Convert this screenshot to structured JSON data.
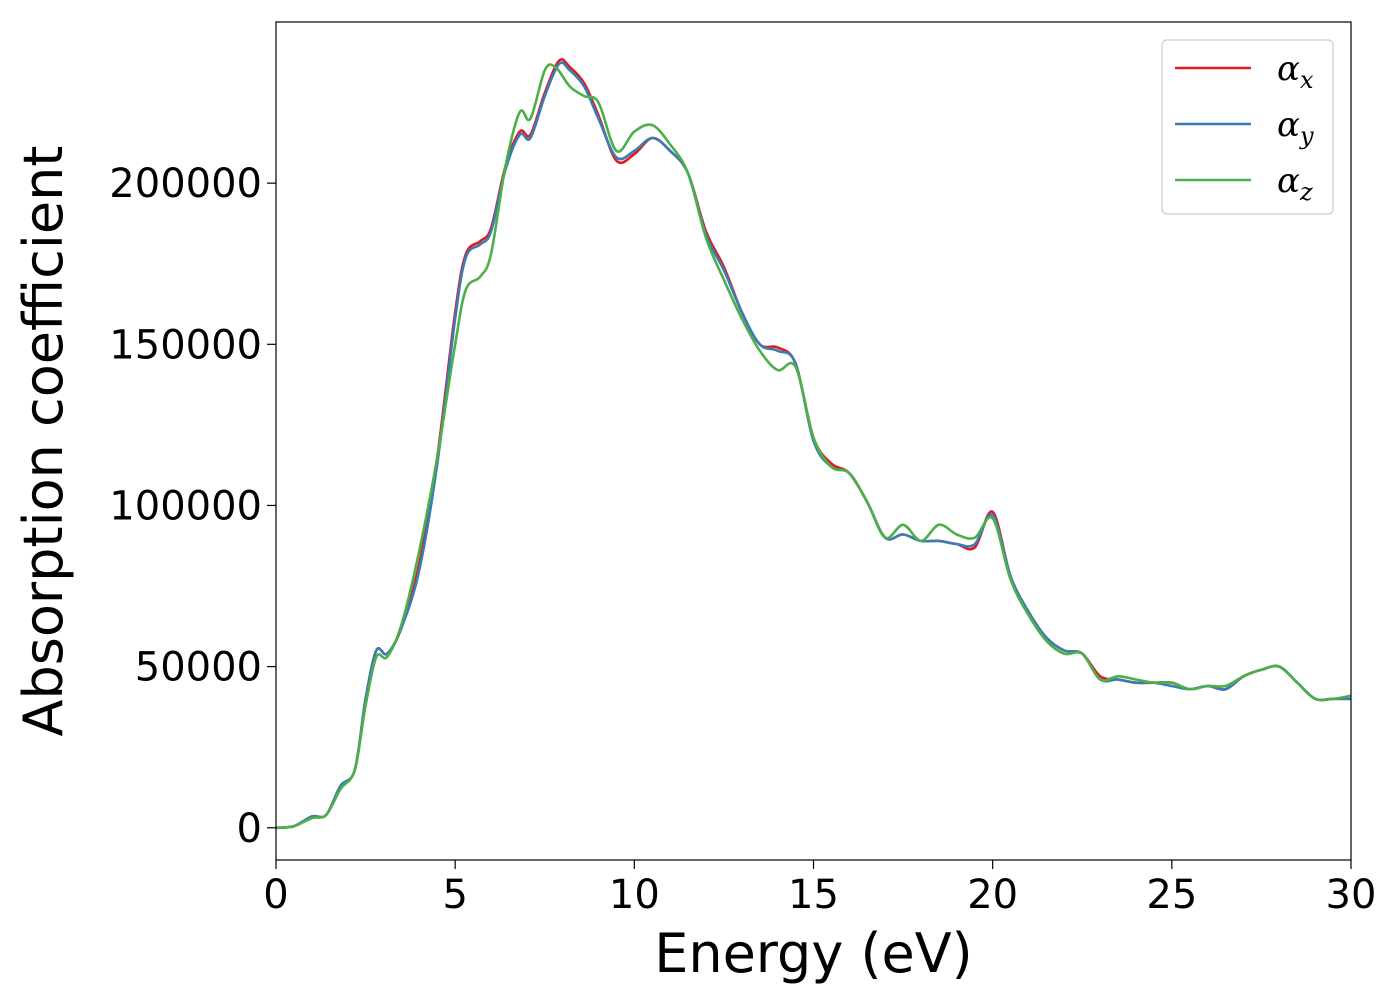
{
  "chart_data": {
    "type": "line",
    "title": "",
    "xlabel": "Energy (eV)",
    "ylabel": "Absorption coefficient",
    "xlim": [
      0,
      30
    ],
    "ylim": [
      -10000,
      250000
    ],
    "x_ticks": [
      0,
      5,
      10,
      15,
      20,
      25,
      30
    ],
    "x_tick_labels": [
      "0",
      "5",
      "10",
      "15",
      "20",
      "25",
      "30"
    ],
    "y_ticks": [
      0,
      50000,
      100000,
      150000,
      200000
    ],
    "y_tick_labels": [
      "0",
      "50000",
      "100000",
      "150000",
      "200000"
    ],
    "grid": false,
    "legend_position": "top-right",
    "series": [
      {
        "name": "αx",
        "legend_base": "α",
        "legend_sub": "x",
        "color": "#e41a1c",
        "points": [
          [
            0,
            0
          ],
          [
            0.5,
            500
          ],
          [
            1,
            3500
          ],
          [
            1.4,
            4000
          ],
          [
            1.8,
            13000
          ],
          [
            2.2,
            18000
          ],
          [
            2.5,
            40000
          ],
          [
            2.8,
            55000
          ],
          [
            3.1,
            54000
          ],
          [
            3.5,
            62000
          ],
          [
            4,
            82000
          ],
          [
            4.5,
            115000
          ],
          [
            5,
            160000
          ],
          [
            5.3,
            178000
          ],
          [
            5.7,
            182000
          ],
          [
            6,
            186000
          ],
          [
            6.4,
            205000
          ],
          [
            6.8,
            216000
          ],
          [
            7.1,
            215000
          ],
          [
            7.5,
            228000
          ],
          [
            7.9,
            238000
          ],
          [
            8.2,
            236000
          ],
          [
            8.6,
            231000
          ],
          [
            9,
            221000
          ],
          [
            9.5,
            207000
          ],
          [
            10,
            209000
          ],
          [
            10.5,
            214000
          ],
          [
            11,
            210000
          ],
          [
            11.5,
            203000
          ],
          [
            12,
            185000
          ],
          [
            12.5,
            174000
          ],
          [
            13,
            160000
          ],
          [
            13.5,
            150000
          ],
          [
            14,
            149000
          ],
          [
            14.5,
            144000
          ],
          [
            15,
            121000
          ],
          [
            15.5,
            113000
          ],
          [
            16,
            110000
          ],
          [
            16.5,
            101000
          ],
          [
            17,
            90000
          ],
          [
            17.5,
            91000
          ],
          [
            18,
            89000
          ],
          [
            18.5,
            89000
          ],
          [
            19,
            88000
          ],
          [
            19.5,
            87000
          ],
          [
            20,
            98000
          ],
          [
            20.5,
            78000
          ],
          [
            21,
            67000
          ],
          [
            21.5,
            59000
          ],
          [
            22,
            55000
          ],
          [
            22.5,
            54000
          ],
          [
            23,
            47000
          ],
          [
            23.5,
            46000
          ],
          [
            24,
            45000
          ],
          [
            24.5,
            45000
          ],
          [
            25,
            45000
          ],
          [
            25.5,
            43000
          ],
          [
            26,
            44000
          ],
          [
            26.5,
            43000
          ],
          [
            27,
            47000
          ],
          [
            27.5,
            49000
          ],
          [
            28,
            50000
          ],
          [
            28.5,
            45000
          ],
          [
            29,
            40000
          ],
          [
            29.5,
            40000
          ],
          [
            30,
            40000
          ]
        ]
      },
      {
        "name": "αy",
        "legend_base": "α",
        "legend_sub": "y",
        "color": "#377eb8",
        "points": [
          [
            0,
            0
          ],
          [
            0.5,
            500
          ],
          [
            1,
            3500
          ],
          [
            1.4,
            4000
          ],
          [
            1.8,
            13000
          ],
          [
            2.2,
            18000
          ],
          [
            2.5,
            40000
          ],
          [
            2.8,
            55000
          ],
          [
            3.1,
            54000
          ],
          [
            3.5,
            62000
          ],
          [
            4,
            80000
          ],
          [
            4.5,
            113000
          ],
          [
            5,
            158000
          ],
          [
            5.3,
            177000
          ],
          [
            5.7,
            181000
          ],
          [
            6,
            185000
          ],
          [
            6.4,
            204000
          ],
          [
            6.8,
            215000
          ],
          [
            7.1,
            214000
          ],
          [
            7.5,
            227000
          ],
          [
            7.9,
            237000
          ],
          [
            8.2,
            235000
          ],
          [
            8.6,
            230000
          ],
          [
            9,
            220000
          ],
          [
            9.5,
            208000
          ],
          [
            10,
            210000
          ],
          [
            10.5,
            214000
          ],
          [
            11,
            210000
          ],
          [
            11.5,
            203000
          ],
          [
            12,
            184000
          ],
          [
            12.5,
            173000
          ],
          [
            13,
            160000
          ],
          [
            13.5,
            150000
          ],
          [
            14,
            148000
          ],
          [
            14.5,
            144000
          ],
          [
            15,
            120000
          ],
          [
            15.5,
            112000
          ],
          [
            16,
            110000
          ],
          [
            16.5,
            101000
          ],
          [
            17,
            90000
          ],
          [
            17.5,
            91000
          ],
          [
            18,
            89000
          ],
          [
            18.5,
            89000
          ],
          [
            19,
            88000
          ],
          [
            19.5,
            88000
          ],
          [
            20,
            97000
          ],
          [
            20.5,
            78000
          ],
          [
            21,
            67000
          ],
          [
            21.5,
            59000
          ],
          [
            22,
            55000
          ],
          [
            22.5,
            54000
          ],
          [
            23,
            46000
          ],
          [
            23.5,
            46000
          ],
          [
            24,
            45000
          ],
          [
            24.5,
            45000
          ],
          [
            25,
            44000
          ],
          [
            25.5,
            43000
          ],
          [
            26,
            44000
          ],
          [
            26.5,
            43000
          ],
          [
            27,
            47000
          ],
          [
            27.5,
            49000
          ],
          [
            28,
            50000
          ],
          [
            28.5,
            45000
          ],
          [
            29,
            40000
          ],
          [
            29.5,
            40000
          ],
          [
            30,
            40000
          ]
        ]
      },
      {
        "name": "αz",
        "legend_base": "α",
        "legend_sub": "z",
        "color": "#4daf4a",
        "points": [
          [
            0,
            0
          ],
          [
            0.5,
            500
          ],
          [
            1,
            3000
          ],
          [
            1.4,
            4000
          ],
          [
            1.8,
            12000
          ],
          [
            2.2,
            18000
          ],
          [
            2.5,
            38000
          ],
          [
            2.8,
            53000
          ],
          [
            3.1,
            53000
          ],
          [
            3.5,
            63000
          ],
          [
            4,
            86000
          ],
          [
            4.5,
            115000
          ],
          [
            5,
            150000
          ],
          [
            5.3,
            167000
          ],
          [
            5.7,
            171000
          ],
          [
            6,
            178000
          ],
          [
            6.4,
            205000
          ],
          [
            6.8,
            222000
          ],
          [
            7.1,
            220000
          ],
          [
            7.5,
            235000
          ],
          [
            7.8,
            236000
          ],
          [
            8.2,
            230000
          ],
          [
            8.6,
            227000
          ],
          [
            9,
            225000
          ],
          [
            9.5,
            210000
          ],
          [
            10,
            216000
          ],
          [
            10.5,
            218000
          ],
          [
            11,
            212000
          ],
          [
            11.5,
            203000
          ],
          [
            12,
            183000
          ],
          [
            12.5,
            170000
          ],
          [
            13,
            158000
          ],
          [
            13.5,
            148000
          ],
          [
            14,
            142000
          ],
          [
            14.5,
            143000
          ],
          [
            15,
            121000
          ],
          [
            15.5,
            112000
          ],
          [
            16,
            110000
          ],
          [
            16.5,
            101000
          ],
          [
            17,
            90000
          ],
          [
            17.5,
            94000
          ],
          [
            18,
            89000
          ],
          [
            18.5,
            94000
          ],
          [
            19,
            91000
          ],
          [
            19.5,
            90000
          ],
          [
            20,
            96000
          ],
          [
            20.5,
            77000
          ],
          [
            21,
            66000
          ],
          [
            21.5,
            58000
          ],
          [
            22,
            54000
          ],
          [
            22.5,
            54000
          ],
          [
            23,
            46000
          ],
          [
            23.5,
            47000
          ],
          [
            24,
            46000
          ],
          [
            24.5,
            45000
          ],
          [
            25,
            45000
          ],
          [
            25.5,
            43000
          ],
          [
            26,
            44000
          ],
          [
            26.5,
            44000
          ],
          [
            27,
            47000
          ],
          [
            27.5,
            49000
          ],
          [
            28,
            50000
          ],
          [
            28.5,
            45000
          ],
          [
            29,
            40000
          ],
          [
            29.5,
            40000
          ],
          [
            30,
            41000
          ]
        ]
      }
    ]
  }
}
